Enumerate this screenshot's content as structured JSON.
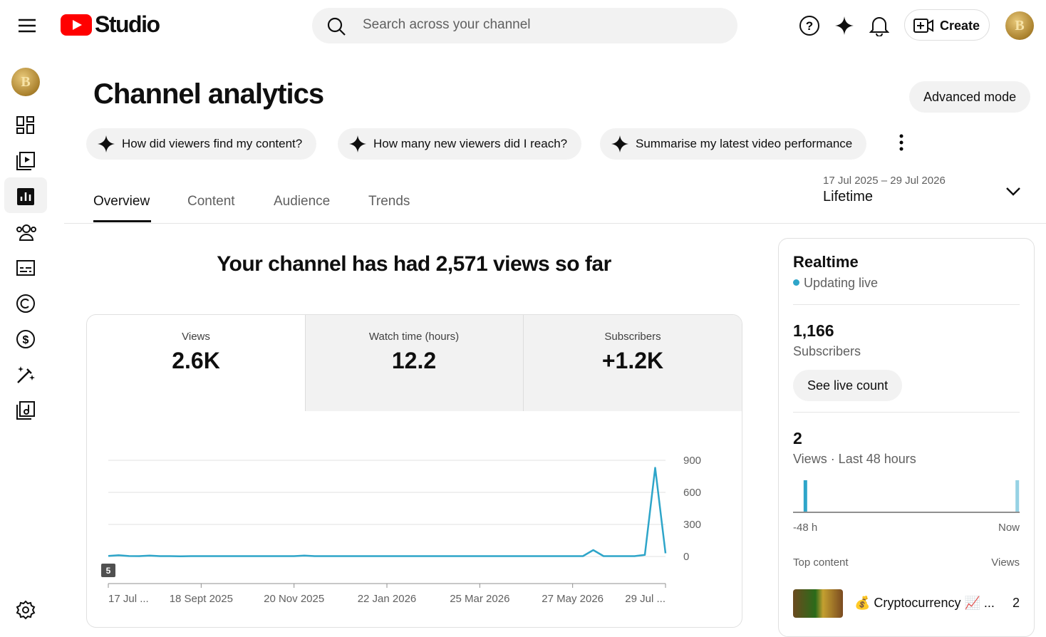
{
  "header": {
    "logo": "Studio",
    "search_placeholder": "Search across your channel",
    "create": "Create"
  },
  "page": {
    "title": "Channel analytics",
    "advanced_mode": "Advanced mode"
  },
  "suggestions": [
    "How did viewers find my content?",
    "How many new viewers did I reach?",
    "Summarise my latest video performance"
  ],
  "tabs": [
    "Overview",
    "Content",
    "Audience",
    "Trends"
  ],
  "date_range": {
    "dates": "17 Jul 2025 – 29 Jul 2026",
    "label": "Lifetime"
  },
  "headline": "Your channel has had 2,571 views so far",
  "metrics": [
    {
      "label": "Views",
      "value": "2.6K"
    },
    {
      "label": "Watch time (hours)",
      "value": "12.2"
    },
    {
      "label": "Subscribers",
      "value": "+1.2K"
    }
  ],
  "chart_data": [
    {
      "type": "line",
      "color": "#2ea5c9",
      "annotation": "5",
      "categories": [
        "17 Jul ...",
        null,
        null,
        null,
        null,
        null,
        null,
        null,
        null,
        "18 Sept 2025",
        null,
        null,
        null,
        null,
        null,
        null,
        null,
        null,
        "20 Nov 2025",
        null,
        null,
        null,
        null,
        null,
        null,
        null,
        null,
        "22 Jan 2026",
        null,
        null,
        null,
        null,
        null,
        null,
        null,
        null,
        "25 Mar 2026",
        null,
        null,
        null,
        null,
        null,
        null,
        null,
        null,
        "27 May 2026",
        null,
        null,
        null,
        null,
        null,
        null,
        null,
        null,
        "29 Jul ..."
      ],
      "values": [
        5,
        12,
        4,
        3,
        8,
        3,
        3,
        2,
        3,
        3,
        3,
        3,
        3,
        3,
        3,
        3,
        3,
        3,
        3,
        8,
        3,
        3,
        3,
        3,
        3,
        3,
        3,
        3,
        3,
        3,
        3,
        3,
        3,
        3,
        3,
        3,
        3,
        3,
        3,
        3,
        3,
        3,
        3,
        3,
        3,
        3,
        3,
        60,
        3,
        3,
        3,
        3,
        15,
        830,
        30
      ],
      "ylim": [
        0,
        900
      ],
      "yticks": [
        0,
        300,
        600,
        900
      ],
      "grid": true
    },
    {
      "type": "bar",
      "color": "#2ea5c9",
      "x_start_label": "-48 h",
      "x_end_label": "Now",
      "values": [
        1,
        0,
        0,
        0,
        0,
        0,
        0,
        0,
        0,
        0,
        0,
        0,
        0,
        0,
        0,
        0,
        0,
        0,
        0,
        0,
        0,
        0,
        0,
        0,
        0,
        0,
        0,
        0,
        0,
        0,
        0,
        0,
        0,
        0,
        0,
        0,
        0,
        0,
        0,
        0,
        0,
        0,
        0,
        0,
        0,
        0,
        0,
        1
      ],
      "ylim": [
        0,
        1
      ]
    }
  ],
  "realtime": {
    "title": "Realtime",
    "status": "Updating live",
    "subscribers_value": "1,166",
    "subscribers_label": "Subscribers",
    "live_count_button": "See live count",
    "views_value": "2",
    "views_label": "Views · Last 48 hours",
    "top_content_label": "Top content",
    "views_column": "Views",
    "top_item": {
      "title": "💰 Cryptocurrency 📈 ...",
      "views": "2"
    }
  }
}
